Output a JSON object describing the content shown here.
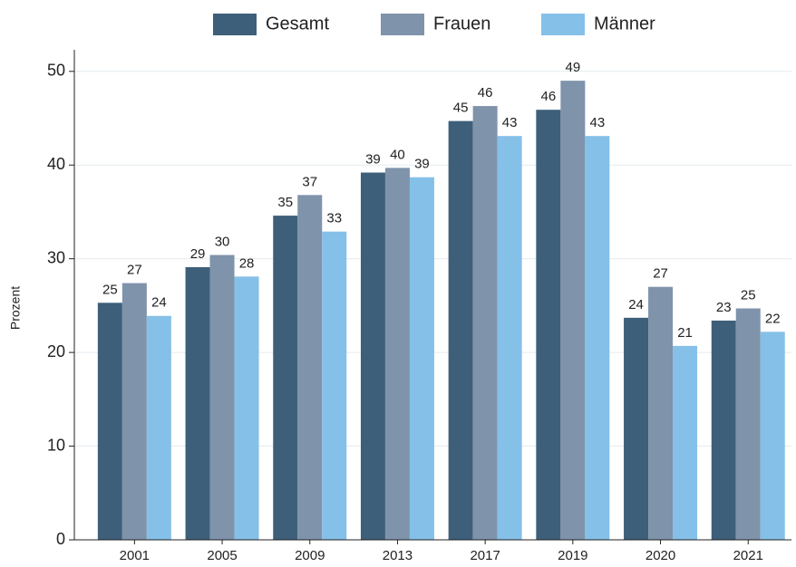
{
  "chart_data": {
    "type": "bar",
    "y_label": "Prozent",
    "categories": [
      "2001",
      "2005",
      "2009",
      "2013",
      "2017",
      "2019",
      "2020",
      "2021"
    ],
    "series": [
      {
        "name": "Gesamt",
        "color": "#3d5f7a",
        "values": [
          25.3,
          29.1,
          34.6,
          39.2,
          44.7,
          45.9,
          23.7,
          23.4
        ],
        "value_labels": [
          "25",
          "29",
          "35",
          "39",
          "45",
          "46",
          "24",
          "23"
        ]
      },
      {
        "name": "Frauen",
        "color": "#7f93ab",
        "values": [
          27.4,
          30.4,
          36.8,
          39.7,
          46.3,
          49.0,
          27.0,
          24.7
        ],
        "value_labels": [
          "27",
          "30",
          "37",
          "40",
          "46",
          "49",
          "27",
          "25"
        ]
      },
      {
        "name": "Männer",
        "color": "#85c0e8",
        "values": [
          23.9,
          28.1,
          32.9,
          38.7,
          43.1,
          43.1,
          20.7,
          22.2
        ],
        "value_labels": [
          "24",
          "28",
          "33",
          "39",
          "43",
          "43",
          "21",
          "22"
        ]
      }
    ],
    "ylim": [
      0,
      52.3
    ],
    "yticks": [
      0,
      10,
      20,
      30,
      40,
      50
    ],
    "grid": true,
    "legend": "top"
  }
}
